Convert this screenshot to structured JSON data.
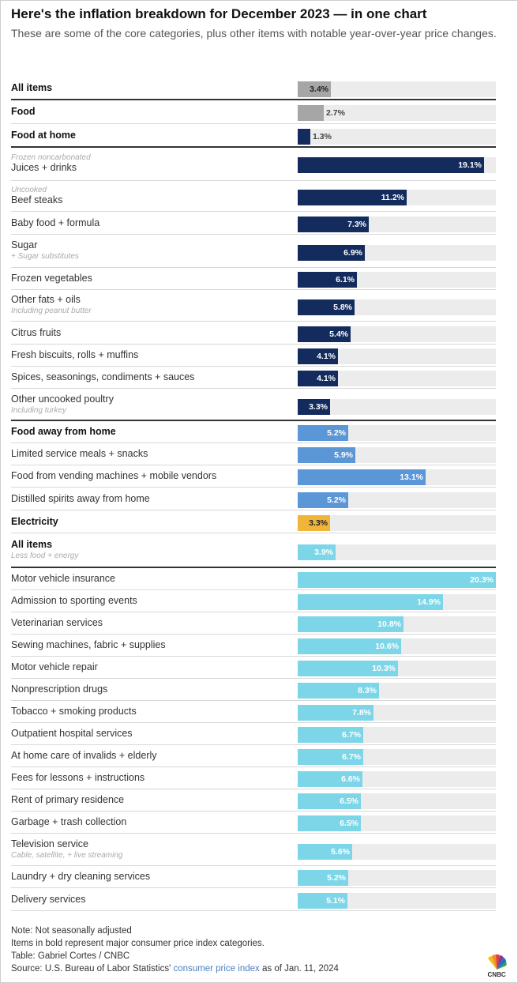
{
  "header": {
    "title": "Here's the inflation breakdown for December 2023 — in one chart",
    "subtitle": "These are some of the core categories, plus other items with notable year-over-year price changes."
  },
  "chart_data": {
    "type": "bar",
    "orientation": "horizontal",
    "xlim": [
      0,
      20.3
    ],
    "unit": "%",
    "colors": {
      "all_items": "#a6a6a6",
      "food": "#142b5e",
      "food_away": "#5b96d6",
      "electricity": "#f0b43b",
      "core": "#7dd6e8",
      "track": "#ececec"
    },
    "rows": [
      {
        "label": "All items",
        "pre": "",
        "post": "",
        "value": 3.4,
        "value_label": "3.4%",
        "bold": true,
        "group": "all_items"
      },
      {
        "label": "Food",
        "pre": "",
        "post": "",
        "value": 2.7,
        "value_label": "2.7%",
        "bold": true,
        "group": "all_items"
      },
      {
        "label": "Food at home",
        "pre": "",
        "post": "",
        "value": 1.3,
        "value_label": "1.3%",
        "bold": true,
        "group": "food"
      },
      {
        "label": "Juices + drinks",
        "pre": "Frozen noncarbonated",
        "post": "",
        "value": 19.1,
        "value_label": "19.1%",
        "bold": false,
        "group": "food"
      },
      {
        "label": "Beef steaks",
        "pre": "Uncooked",
        "post": "",
        "value": 11.2,
        "value_label": "11.2%",
        "bold": false,
        "group": "food"
      },
      {
        "label": "Baby food + formula",
        "pre": "",
        "post": "",
        "value": 7.3,
        "value_label": "7.3%",
        "bold": false,
        "group": "food"
      },
      {
        "label": "Sugar",
        "pre": "",
        "post": "+ Sugar substitutes",
        "value": 6.9,
        "value_label": "6.9%",
        "bold": false,
        "group": "food"
      },
      {
        "label": "Frozen vegetables",
        "pre": "",
        "post": "",
        "value": 6.1,
        "value_label": "6.1%",
        "bold": false,
        "group": "food"
      },
      {
        "label": "Other fats + oils",
        "pre": "",
        "post": "Including peanut butter",
        "value": 5.8,
        "value_label": "5.8%",
        "bold": false,
        "group": "food"
      },
      {
        "label": "Citrus fruits",
        "pre": "",
        "post": "",
        "value": 5.4,
        "value_label": "5.4%",
        "bold": false,
        "group": "food"
      },
      {
        "label": "Fresh biscuits, rolls + muffins",
        "pre": "",
        "post": "",
        "value": 4.1,
        "value_label": "4.1%",
        "bold": false,
        "group": "food"
      },
      {
        "label": "Spices, seasonings, condiments + sauces",
        "pre": "",
        "post": "",
        "value": 4.1,
        "value_label": "4.1%",
        "bold": false,
        "group": "food"
      },
      {
        "label": "Other uncooked poultry",
        "pre": "",
        "post": "Including turkey",
        "value": 3.3,
        "value_label": "3.3%",
        "bold": false,
        "group": "food"
      },
      {
        "label": "Food away from home",
        "pre": "",
        "post": "",
        "value": 5.2,
        "value_label": "5.2%",
        "bold": true,
        "group": "food_away"
      },
      {
        "label": "Limited service meals + snacks",
        "pre": "",
        "post": "",
        "value": 5.9,
        "value_label": "5.9%",
        "bold": false,
        "group": "food_away"
      },
      {
        "label": "Food from vending machines + mobile vendors",
        "pre": "",
        "post": "",
        "value": 13.1,
        "value_label": "13.1%",
        "bold": false,
        "group": "food_away"
      },
      {
        "label": "Distilled spirits away from home",
        "pre": "",
        "post": "",
        "value": 5.2,
        "value_label": "5.2%",
        "bold": false,
        "group": "food_away"
      },
      {
        "label": "Electricity",
        "pre": "",
        "post": "",
        "value": 3.3,
        "value_label": "3.3%",
        "bold": true,
        "group": "electricity"
      },
      {
        "label": "All items",
        "pre": "",
        "post": "Less food + energy",
        "value": 3.9,
        "value_label": "3.9%",
        "bold": true,
        "group": "core"
      },
      {
        "label": "Motor vehicle insurance",
        "pre": "",
        "post": "",
        "value": 20.3,
        "value_label": "20.3%",
        "bold": false,
        "group": "core"
      },
      {
        "label": "Admission to sporting events",
        "pre": "",
        "post": "",
        "value": 14.9,
        "value_label": "14.9%",
        "bold": false,
        "group": "core"
      },
      {
        "label": "Veterinarian services",
        "pre": "",
        "post": "",
        "value": 10.8,
        "value_label": "10.8%",
        "bold": false,
        "group": "core"
      },
      {
        "label": "Sewing machines, fabric + supplies",
        "pre": "",
        "post": "",
        "value": 10.6,
        "value_label": "10.6%",
        "bold": false,
        "group": "core"
      },
      {
        "label": "Motor vehicle repair",
        "pre": "",
        "post": "",
        "value": 10.3,
        "value_label": "10.3%",
        "bold": false,
        "group": "core"
      },
      {
        "label": "Nonprescription drugs",
        "pre": "",
        "post": "",
        "value": 8.3,
        "value_label": "8.3%",
        "bold": false,
        "group": "core"
      },
      {
        "label": "Tobacco + smoking products",
        "pre": "",
        "post": "",
        "value": 7.8,
        "value_label": "7.8%",
        "bold": false,
        "group": "core"
      },
      {
        "label": "Outpatient hospital services",
        "pre": "",
        "post": "",
        "value": 6.7,
        "value_label": "6.7%",
        "bold": false,
        "group": "core"
      },
      {
        "label": "At home care of invalids + elderly",
        "pre": "",
        "post": "",
        "value": 6.7,
        "value_label": "6.7%",
        "bold": false,
        "group": "core"
      },
      {
        "label": "Fees for lessons + instructions",
        "pre": "",
        "post": "",
        "value": 6.6,
        "value_label": "6.6%",
        "bold": false,
        "group": "core"
      },
      {
        "label": "Rent of primary residence",
        "pre": "",
        "post": "",
        "value": 6.5,
        "value_label": "6.5%",
        "bold": false,
        "group": "core"
      },
      {
        "label": "Garbage + trash collection",
        "pre": "",
        "post": "",
        "value": 6.5,
        "value_label": "6.5%",
        "bold": false,
        "group": "core"
      },
      {
        "label": "Television service",
        "pre": "",
        "post": "Cable, satellite, + live streaming",
        "value": 5.6,
        "value_label": "5.6%",
        "bold": false,
        "group": "core"
      },
      {
        "label": "Laundry + dry cleaning services",
        "pre": "",
        "post": "",
        "value": 5.2,
        "value_label": "5.2%",
        "bold": false,
        "group": "core"
      },
      {
        "label": "Delivery services",
        "pre": "",
        "post": "",
        "value": 5.1,
        "value_label": "5.1%",
        "bold": false,
        "group": "core"
      }
    ]
  },
  "footer": {
    "note": "Note: Not seasonally adjusted",
    "bold_note": "Items in bold represent major consumer price index categories.",
    "credit": "Table: Gabriel Cortes / CNBC",
    "source_prefix": "Source: U.S. Bureau of Labor Statistics' ",
    "source_link": "consumer price index",
    "source_suffix": " as of Jan. 11, 2024"
  },
  "logo": {
    "text": "CNBC",
    "icon": "cnbc-peacock-icon"
  }
}
